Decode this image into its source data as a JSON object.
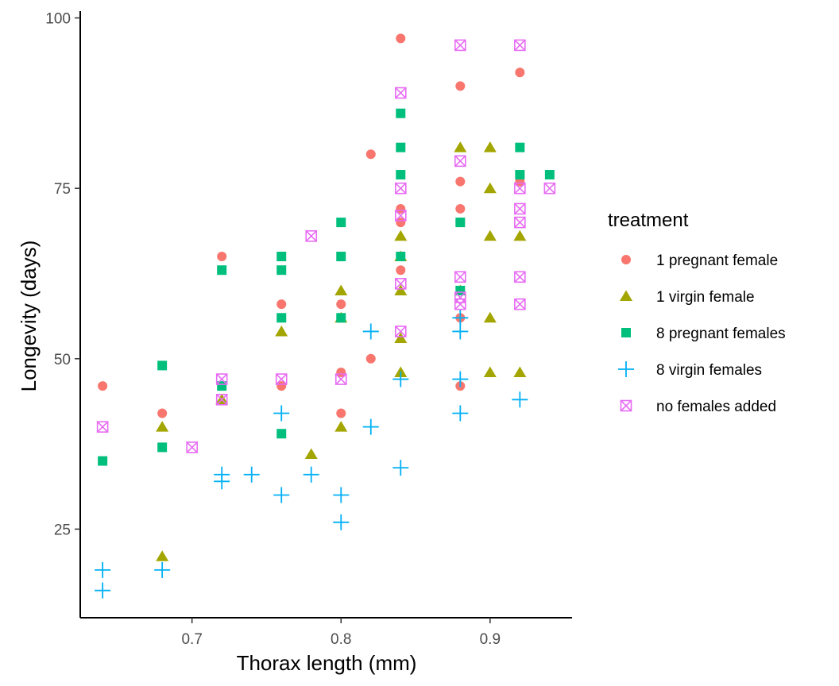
{
  "chart_data": {
    "type": "scatter",
    "title": "",
    "xlabel": "Thorax length (mm)",
    "ylabel": "Longevity (days)",
    "xlim": [
      0.625,
      0.955
    ],
    "ylim": [
      12,
      101
    ],
    "x_ticks": [
      0.7,
      0.8,
      0.9
    ],
    "x_tick_labels": [
      "0.7",
      "0.8",
      "0.9"
    ],
    "y_ticks": [
      25,
      50,
      75,
      100
    ],
    "y_tick_labels": [
      "25",
      "50",
      "75",
      "100"
    ],
    "grid": false,
    "legend": {
      "title": "treatment",
      "position": "right"
    },
    "series": [
      {
        "name": "1 pregnant female",
        "color": "#F8766D",
        "marker": "circle",
        "points": [
          [
            0.64,
            46
          ],
          [
            0.68,
            42
          ],
          [
            0.72,
            65
          ],
          [
            0.76,
            58
          ],
          [
            0.76,
            46
          ],
          [
            0.8,
            58
          ],
          [
            0.8,
            48
          ],
          [
            0.8,
            42
          ],
          [
            0.82,
            80
          ],
          [
            0.82,
            50
          ],
          [
            0.84,
            97
          ],
          [
            0.84,
            72
          ],
          [
            0.84,
            70
          ],
          [
            0.84,
            63
          ],
          [
            0.88,
            90
          ],
          [
            0.88,
            76
          ],
          [
            0.88,
            72
          ],
          [
            0.88,
            70
          ],
          [
            0.88,
            56
          ],
          [
            0.88,
            46
          ],
          [
            0.92,
            92
          ],
          [
            0.92,
            76
          ]
        ]
      },
      {
        "name": "1 virgin female",
        "color": "#A3A500",
        "marker": "triangle",
        "points": [
          [
            0.68,
            40
          ],
          [
            0.68,
            21
          ],
          [
            0.72,
            44
          ],
          [
            0.76,
            54
          ],
          [
            0.78,
            36
          ],
          [
            0.8,
            60
          ],
          [
            0.8,
            56
          ],
          [
            0.8,
            40
          ],
          [
            0.84,
            68
          ],
          [
            0.84,
            65
          ],
          [
            0.84,
            60
          ],
          [
            0.84,
            53
          ],
          [
            0.84,
            48
          ],
          [
            0.88,
            81
          ],
          [
            0.88,
            60
          ],
          [
            0.9,
            81
          ],
          [
            0.9,
            75
          ],
          [
            0.9,
            68
          ],
          [
            0.9,
            56
          ],
          [
            0.9,
            48
          ],
          [
            0.92,
            68
          ],
          [
            0.92,
            48
          ]
        ]
      },
      {
        "name": "8 pregnant females",
        "color": "#00BF7D",
        "marker": "square",
        "points": [
          [
            0.64,
            35
          ],
          [
            0.68,
            49
          ],
          [
            0.68,
            37
          ],
          [
            0.72,
            63
          ],
          [
            0.72,
            46
          ],
          [
            0.76,
            65
          ],
          [
            0.76,
            63
          ],
          [
            0.76,
            56
          ],
          [
            0.76,
            39
          ],
          [
            0.8,
            70
          ],
          [
            0.8,
            65
          ],
          [
            0.8,
            56
          ],
          [
            0.84,
            86
          ],
          [
            0.84,
            81
          ],
          [
            0.84,
            77
          ],
          [
            0.84,
            65
          ],
          [
            0.88,
            70
          ],
          [
            0.88,
            60
          ],
          [
            0.92,
            81
          ],
          [
            0.92,
            77
          ],
          [
            0.94,
            77
          ]
        ]
      },
      {
        "name": "8 virgin females",
        "color": "#00B0F6",
        "marker": "plus",
        "points": [
          [
            0.64,
            19
          ],
          [
            0.64,
            16
          ],
          [
            0.68,
            19
          ],
          [
            0.72,
            33
          ],
          [
            0.72,
            32
          ],
          [
            0.74,
            33
          ],
          [
            0.76,
            42
          ],
          [
            0.76,
            30
          ],
          [
            0.78,
            33
          ],
          [
            0.8,
            30
          ],
          [
            0.8,
            26
          ],
          [
            0.82,
            54
          ],
          [
            0.82,
            40
          ],
          [
            0.84,
            47
          ],
          [
            0.84,
            34
          ],
          [
            0.88,
            56
          ],
          [
            0.88,
            54
          ],
          [
            0.88,
            47
          ],
          [
            0.88,
            42
          ],
          [
            0.92,
            44
          ]
        ]
      },
      {
        "name": "no females added",
        "color": "#E76BF3",
        "marker": "square-x",
        "points": [
          [
            0.64,
            40
          ],
          [
            0.7,
            37
          ],
          [
            0.72,
            47
          ],
          [
            0.72,
            44
          ],
          [
            0.76,
            47
          ],
          [
            0.78,
            68
          ],
          [
            0.8,
            47
          ],
          [
            0.84,
            89
          ],
          [
            0.84,
            75
          ],
          [
            0.84,
            71
          ],
          [
            0.84,
            61
          ],
          [
            0.84,
            54
          ],
          [
            0.88,
            96
          ],
          [
            0.88,
            79
          ],
          [
            0.88,
            62
          ],
          [
            0.88,
            59
          ],
          [
            0.88,
            58
          ],
          [
            0.92,
            96
          ],
          [
            0.92,
            75
          ],
          [
            0.92,
            72
          ],
          [
            0.92,
            70
          ],
          [
            0.92,
            62
          ],
          [
            0.92,
            58
          ],
          [
            0.94,
            75
          ]
        ]
      }
    ]
  }
}
